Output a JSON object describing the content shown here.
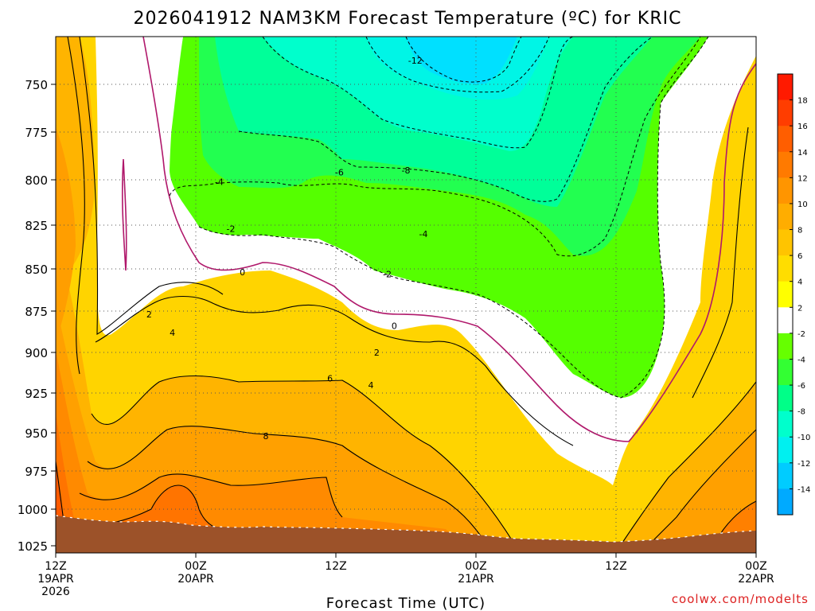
{
  "chart_data": {
    "type": "heatmap",
    "title": "2026041912 NAM3KM Forecast Temperature (ºC) for KRIC",
    "xlabel": "Forecast Time (UTC)",
    "ylabel": "",
    "credit": "coolwx.com/modelts",
    "y_axis": {
      "units": "hPa",
      "ylim": [
        1030,
        720
      ],
      "ticks": [
        "750",
        "775",
        "800",
        "825",
        "850",
        "875",
        "900",
        "925",
        "950",
        "975",
        "1000",
        "1025"
      ],
      "tick_values": [
        750,
        775,
        800,
        825,
        850,
        875,
        900,
        925,
        950,
        975,
        1000,
        1025
      ]
    },
    "x_axis": {
      "units": "forecast hour",
      "xlim": [
        0,
        60
      ],
      "ticks": [
        {
          "hour": 0,
          "line1": "12Z",
          "line2": "19APR",
          "line3": "2026"
        },
        {
          "hour": 12,
          "line1": "00Z",
          "line2": "20APR",
          "line3": ""
        },
        {
          "hour": 24,
          "line1": "12Z",
          "line2": "",
          "line3": ""
        },
        {
          "hour": 36,
          "line1": "00Z",
          "line2": "21APR",
          "line3": ""
        },
        {
          "hour": 48,
          "line1": "12Z",
          "line2": "",
          "line3": ""
        },
        {
          "hour": 60,
          "line1": "00Z",
          "line2": "22APR",
          "line3": ""
        }
      ]
    },
    "colorbar": {
      "labels": [
        "18",
        "16",
        "14",
        "12",
        "10",
        "8",
        "6",
        "4",
        "2",
        "-2",
        "-4",
        "-6",
        "-8",
        "-10",
        "-12",
        "-14"
      ],
      "colors": [
        "#ff1a00",
        "#ff3d00",
        "#ff5e00",
        "#ff7a00",
        "#ff9500",
        "#ffad00",
        "#ffc400",
        "#ffdd00",
        "#ffff00",
        "#ffffff",
        "#66ff00",
        "#33ff33",
        "#00ff88",
        "#00ffcc",
        "#00f0f0",
        "#00ccff",
        "#00aaff"
      ]
    },
    "contour_labels": [
      {
        "text": "-12",
        "hour": 30.8,
        "p": 735
      },
      {
        "text": "-8",
        "hour": 30.0,
        "p": 795
      },
      {
        "text": "-6",
        "hour": 24.3,
        "p": 796
      },
      {
        "text": "-4",
        "hour": 14.0,
        "p": 801
      },
      {
        "text": "-4",
        "hour": 31.5,
        "p": 830
      },
      {
        "text": "-2",
        "hour": 15.0,
        "p": 827
      },
      {
        "text": "-2",
        "hour": 28.4,
        "p": 853
      },
      {
        "text": "0",
        "hour": 16.0,
        "p": 852
      },
      {
        "text": "0",
        "hour": 29.0,
        "p": 884
      },
      {
        "text": "2",
        "hour": 8.0,
        "p": 877
      },
      {
        "text": "2",
        "hour": 27.5,
        "p": 900
      },
      {
        "text": "4",
        "hour": 10.0,
        "p": 888
      },
      {
        "text": "4",
        "hour": 27.0,
        "p": 920
      },
      {
        "text": "6",
        "hour": 23.5,
        "p": 916
      },
      {
        "text": "8",
        "hour": 18.0,
        "p": 952
      }
    ]
  }
}
